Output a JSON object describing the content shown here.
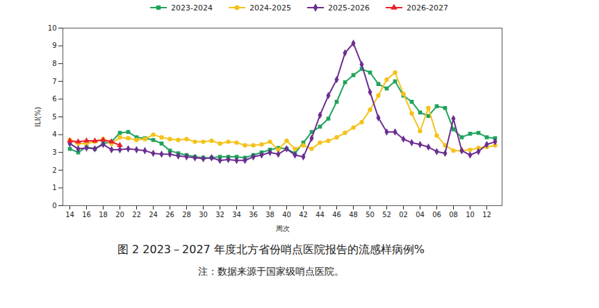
{
  "chart_data": {
    "type": "line",
    "title": "图 2 2023－2027 年度北方省份哨点医院报告的流感样病例%",
    "subtitle": "注：数据来源于国家级哨点医院。",
    "x_label": "周次",
    "y_label": "ILI(%)",
    "legend": "top",
    "grid": false,
    "categories": [
      "14",
      null,
      "16",
      null,
      "18",
      null,
      "20",
      null,
      "22",
      null,
      "24",
      null,
      "26",
      null,
      "28",
      null,
      "30",
      null,
      "32",
      null,
      "34",
      null,
      "36",
      null,
      "38",
      null,
      "40",
      null,
      "42",
      null,
      "44",
      null,
      "46",
      null,
      "48",
      null,
      "50",
      null,
      "52",
      null,
      "02",
      null,
      "04",
      null,
      "06",
      null,
      "08",
      null,
      "10",
      null,
      "12",
      null
    ],
    "ylim": [
      0,
      10
    ],
    "yticks": [
      0,
      1,
      2,
      3,
      4,
      5,
      6,
      7,
      8,
      9,
      10
    ],
    "series": [
      {
        "name": "2023-2024",
        "color": "#1fa35b",
        "marker": "square",
        "values": [
          3.2,
          3.0,
          3.3,
          3.2,
          3.5,
          3.6,
          4.1,
          4.15,
          3.85,
          3.8,
          3.7,
          3.5,
          3.1,
          2.95,
          2.85,
          2.75,
          2.7,
          2.7,
          2.75,
          2.75,
          2.75,
          2.7,
          2.85,
          3.0,
          3.15,
          3.25,
          3.2,
          2.95,
          3.55,
          4.15,
          4.45,
          4.9,
          5.85,
          6.95,
          7.35,
          7.7,
          7.5,
          6.85,
          6.6,
          7.0,
          6.2,
          5.85,
          5.25,
          5.05,
          5.6,
          5.5,
          4.3,
          3.85,
          4.05,
          4.1,
          3.85,
          3.8
        ]
      },
      {
        "name": "2024-2025",
        "color": "#f5c21b",
        "marker": "circle",
        "values": [
          3.7,
          3.5,
          3.5,
          3.6,
          3.75,
          3.5,
          3.85,
          3.8,
          3.7,
          3.75,
          4.0,
          3.85,
          3.75,
          3.7,
          3.75,
          3.6,
          3.6,
          3.65,
          3.5,
          3.6,
          3.55,
          3.4,
          3.4,
          3.45,
          3.6,
          3.15,
          3.65,
          3.2,
          3.4,
          3.2,
          3.55,
          3.65,
          3.85,
          4.1,
          4.4,
          4.7,
          5.4,
          6.2,
          7.1,
          7.5,
          6.3,
          5.2,
          4.2,
          5.5,
          3.95,
          3.4,
          3.1,
          3.1,
          3.15,
          3.25,
          3.3,
          3.4
        ]
      },
      {
        "name": "2025-2026",
        "color": "#6b2d91",
        "marker": "diamond",
        "values": [
          3.5,
          3.2,
          3.25,
          3.2,
          3.45,
          3.15,
          3.15,
          3.2,
          3.15,
          3.1,
          2.95,
          2.9,
          2.9,
          2.8,
          2.75,
          2.7,
          2.65,
          2.7,
          2.55,
          2.6,
          2.55,
          2.55,
          2.75,
          2.85,
          3.0,
          2.9,
          3.2,
          2.85,
          2.75,
          3.8,
          5.1,
          6.2,
          7.1,
          8.6,
          9.15,
          7.95,
          6.4,
          4.95,
          4.15,
          4.15,
          3.75,
          3.55,
          3.45,
          3.3,
          3.05,
          2.95,
          4.9,
          3.1,
          2.85,
          3.05,
          3.45,
          3.6
        ]
      },
      {
        "name": "2026-2027",
        "color": "#e8202a",
        "marker": "triangle",
        "values": [
          3.65,
          3.6,
          3.65,
          3.65,
          3.7,
          3.6,
          3.4,
          null,
          null,
          null,
          null,
          null,
          null,
          null,
          null,
          null,
          null,
          null,
          null,
          null,
          null,
          null,
          null,
          null,
          null,
          null,
          null,
          null,
          null,
          null,
          null,
          null,
          null,
          null,
          null,
          null,
          null,
          null,
          null,
          null,
          null,
          null,
          null,
          null,
          null,
          null,
          null,
          null,
          null,
          null,
          null,
          null
        ]
      }
    ]
  }
}
